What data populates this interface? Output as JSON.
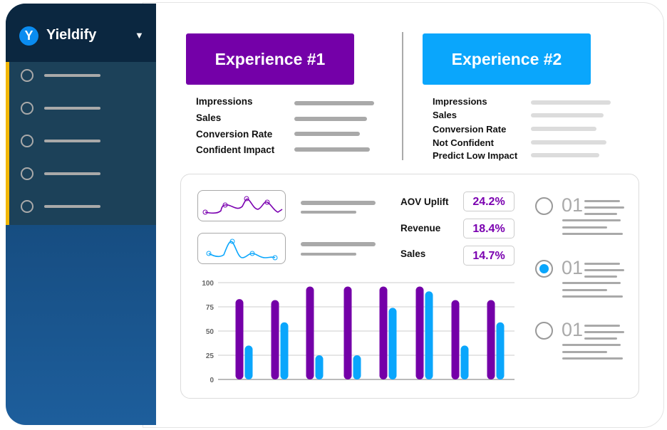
{
  "sidebar": {
    "brand": "Yieldify",
    "logo_letter": "Y",
    "items": 5,
    "accent": "#f2b705"
  },
  "experience1": {
    "title": "Experience #1",
    "color": "#7400a8",
    "labels": [
      "Impressions",
      "Sales",
      "Conversion Rate",
      "Confident Impact"
    ]
  },
  "experience2": {
    "title": "Experience #2",
    "color": "#0aa6fc",
    "labels": [
      "Impressions",
      "Sales",
      "Conversion Rate",
      "Not Confident",
      "Predict Low Impact"
    ]
  },
  "metrics": [
    {
      "label": "AOV Uplift",
      "value": "24.2%"
    },
    {
      "label": "Revenue",
      "value": "18.4%"
    },
    {
      "label": "Sales",
      "value": "14.7%"
    }
  ],
  "options": [
    {
      "number": "01",
      "selected": false
    },
    {
      "number": "01",
      "selected": true
    },
    {
      "number": "01",
      "selected": false
    }
  ],
  "chart_data": {
    "type": "bar",
    "ylim": [
      0,
      100
    ],
    "yticks": [
      "100",
      "75",
      "50",
      "25",
      "0"
    ],
    "grid": true,
    "series": [
      {
        "color": "#7400a8",
        "values": [
          83,
          82,
          96,
          96,
          96,
          96,
          82,
          82
        ]
      },
      {
        "color": "#0aa6fc",
        "values": [
          35,
          59,
          25,
          25,
          74,
          91,
          35,
          59
        ]
      }
    ]
  }
}
